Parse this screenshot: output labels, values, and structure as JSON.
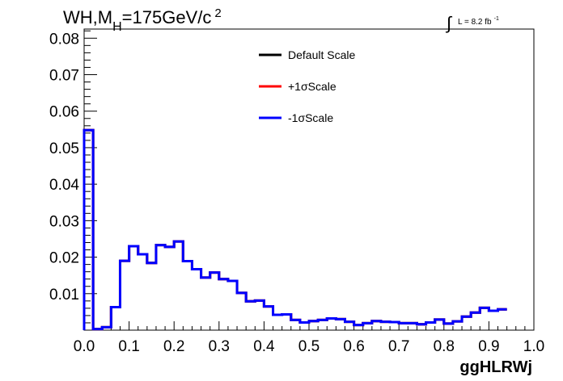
{
  "chart_data": {
    "type": "histogram",
    "title": {
      "main": "WH,M",
      "subscript": "H",
      "rest": "=175GeV/c",
      "superscript": "2"
    },
    "lumi": {
      "integral": "∫",
      "text": "L = 8.2 fb",
      "superscript": "-1"
    },
    "xlabel": "ggHLRWj",
    "ylabel": "",
    "xlim": [
      0.0,
      1.0
    ],
    "ylim": [
      0.0,
      0.0825
    ],
    "x_ticks": [
      "0.0",
      "0.1",
      "0.2",
      "0.3",
      "0.4",
      "0.5",
      "0.6",
      "0.7",
      "0.8",
      "0.9",
      "1.0"
    ],
    "y_ticks": [
      "0.01",
      "0.02",
      "0.03",
      "0.04",
      "0.05",
      "0.06",
      "0.07",
      "0.08"
    ],
    "bin_edges_start": 0.0,
    "bin_width": 0.02,
    "series": [
      {
        "name": "Default Scale",
        "color": "#000000",
        "values": [
          0.0548,
          0.0003,
          0.0008,
          0.0063,
          0.019,
          0.023,
          0.0208,
          0.0184,
          0.0233,
          0.0228,
          0.0243,
          0.0189,
          0.0167,
          0.0144,
          0.0158,
          0.014,
          0.0135,
          0.0102,
          0.0079,
          0.0081,
          0.0065,
          0.0042,
          0.0043,
          0.0028,
          0.0021,
          0.0025,
          0.0028,
          0.0032,
          0.003,
          0.0023,
          0.0014,
          0.0019,
          0.0025,
          0.0023,
          0.0022,
          0.0019,
          0.0019,
          0.0016,
          0.0021,
          0.0029,
          0.0018,
          0.0024,
          0.0037,
          0.0048,
          0.0061,
          0.0053,
          0.0057
        ]
      },
      {
        "name": "+1σScale",
        "color": "#ff0000",
        "values": [
          0.0548,
          0.0003,
          0.0008,
          0.0063,
          0.019,
          0.023,
          0.0208,
          0.0184,
          0.0233,
          0.0228,
          0.0243,
          0.0189,
          0.0167,
          0.0144,
          0.0158,
          0.014,
          0.0135,
          0.0102,
          0.0079,
          0.0081,
          0.0065,
          0.0042,
          0.0043,
          0.0028,
          0.0021,
          0.0025,
          0.0028,
          0.0032,
          0.003,
          0.0023,
          0.0014,
          0.0019,
          0.0025,
          0.0023,
          0.0022,
          0.0019,
          0.0019,
          0.0016,
          0.0021,
          0.0029,
          0.0018,
          0.0024,
          0.0037,
          0.0048,
          0.0061,
          0.0053,
          0.0057
        ]
      },
      {
        "name": "-1σScale",
        "color": "#0000ff",
        "values": [
          0.0548,
          0.0003,
          0.0008,
          0.0063,
          0.019,
          0.023,
          0.0208,
          0.0184,
          0.0233,
          0.0228,
          0.0243,
          0.0189,
          0.0167,
          0.0144,
          0.0158,
          0.014,
          0.0135,
          0.0102,
          0.0079,
          0.0081,
          0.0065,
          0.0042,
          0.0043,
          0.0028,
          0.0021,
          0.0025,
          0.0028,
          0.0032,
          0.003,
          0.0023,
          0.0014,
          0.0019,
          0.0025,
          0.0023,
          0.0022,
          0.0019,
          0.0019,
          0.0016,
          0.0021,
          0.0029,
          0.0018,
          0.0024,
          0.0037,
          0.0048,
          0.0061,
          0.0053,
          0.0057
        ]
      }
    ],
    "legend": {
      "position": "top-center",
      "entries": [
        "Default Scale",
        "+1σScale",
        "-1σScale"
      ]
    },
    "grid": false
  }
}
